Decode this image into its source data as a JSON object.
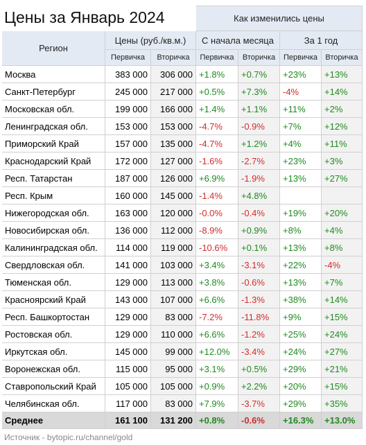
{
  "title": "Цены за Январь 2024",
  "source": "Источник - bytopic.ru/channel/gold",
  "table": {
    "group_header": "Как изменились цены",
    "header": [
      "Регион",
      "Цены (руб./кв.м.)",
      "С начала месяца",
      "За 1 год"
    ],
    "subheader": [
      "Первичка",
      "Вторичка",
      "Первичка",
      "Вторичка",
      "Первичка",
      "Вторичка"
    ],
    "rows": [
      [
        "Москва",
        "383 000",
        "306 000",
        "+1.8%",
        "+0.7%",
        "+23%",
        "+13%"
      ],
      [
        "Санкт-Петербург",
        "245 000",
        "217 000",
        "+0.5%",
        "+7.3%",
        "-4%",
        "+14%"
      ],
      [
        "Московская обл.",
        "199 000",
        "166 000",
        "+1.4%",
        "+1.1%",
        "+11%",
        "+2%"
      ],
      [
        "Ленинградская обл.",
        "153 000",
        "153 000",
        "-4.7%",
        "-0.9%",
        "+7%",
        "+12%"
      ],
      [
        "Приморский Край",
        "157 000",
        "135 000",
        "-4.7%",
        "+1.2%",
        "+4%",
        "+11%"
      ],
      [
        "Краснодарский Край",
        "172 000",
        "127 000",
        "-1.6%",
        "-2.7%",
        "+23%",
        "+3%"
      ],
      [
        "Респ. Татарстан",
        "187 000",
        "126 000",
        "+6.9%",
        "-1.9%",
        "+13%",
        "+27%"
      ],
      [
        "Респ. Крым",
        "160 000",
        "145 000",
        "-1.4%",
        "+4.8%",
        null,
        null
      ],
      [
        "Нижегородская обл.",
        "163 000",
        "120 000",
        "-0.0%",
        "-0.4%",
        "+19%",
        "+20%"
      ],
      [
        "Новосибирская обл.",
        "136 000",
        "112 000",
        "-8.9%",
        "+0.9%",
        "+8%",
        "+4%"
      ],
      [
        "Калининградская обл.",
        "114 000",
        "119 000",
        "-10.6%",
        "+0.1%",
        "+13%",
        "+8%"
      ],
      [
        "Свердловская обл.",
        "141 000",
        "103 000",
        "+3.4%",
        "-3.1%",
        "+22%",
        "-4%"
      ],
      [
        "Тюменская обл.",
        "129 000",
        "113 000",
        "+3.8%",
        "-0.6%",
        "+13%",
        "+7%"
      ],
      [
        "Красноярский Край",
        "143 000",
        "107 000",
        "+6.6%",
        "-1.3%",
        "+38%",
        "+14%"
      ],
      [
        "Респ. Башкортостан",
        "129 000",
        "83 000",
        "-7.2%",
        "-11.8%",
        "+9%",
        "+15%"
      ],
      [
        "Ростовская обл.",
        "129 000",
        "110 000",
        "+6.6%",
        "-1.2%",
        "+25%",
        "+24%"
      ],
      [
        "Иркутская обл.",
        "145 000",
        "99 000",
        "+12.0%",
        "-3.4%",
        "+24%",
        "+27%"
      ],
      [
        "Воронежская обл.",
        "115 000",
        "95 000",
        "+3.1%",
        "+0.5%",
        "+29%",
        "+21%"
      ],
      [
        "Ставропольский Край",
        "105 000",
        "105 000",
        "+0.9%",
        "+2.2%",
        "+20%",
        "+15%"
      ],
      [
        "Челябинская обл.",
        "117 000",
        "83 000",
        "+7.9%",
        "-3.7%",
        "+29%",
        "+35%"
      ]
    ],
    "total": [
      "Среднее",
      "161 100",
      "131 200",
      "+0.8%",
      "-0.6%",
      "+16.3%",
      "+13.0%"
    ]
  }
}
